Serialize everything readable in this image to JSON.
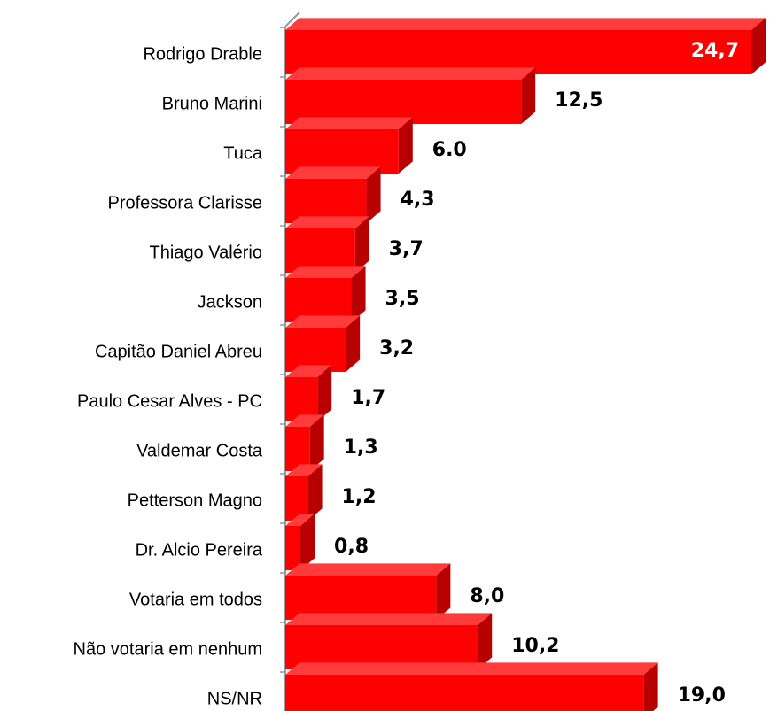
{
  "chart_data": {
    "type": "bar",
    "orientation": "horizontal",
    "color": "#ff0000",
    "categories": [
      "Rodrigo Drable",
      "Bruno Marini",
      "Tuca",
      "Professora Clarisse",
      "Thiago Valério",
      "Jackson",
      "Capitão Daniel Abreu",
      "Paulo Cesar Alves - PC",
      "Valdemar Costa",
      "Petterson Magno",
      "Dr. Alcio Pereira",
      "Votaria em todos",
      "Não votaria em nenhum",
      "NS/NR"
    ],
    "values": [
      24.7,
      12.5,
      6.0,
      4.3,
      3.7,
      3.5,
      3.2,
      1.7,
      1.3,
      1.2,
      0.8,
      8.0,
      10.2,
      19.0
    ],
    "value_labels": [
      "24,7",
      "12,5",
      "6.0",
      "4,3",
      "3,7",
      "3,5",
      "3,2",
      "1,7",
      "1,3",
      "1,2",
      "0,8",
      "8,0",
      "10,2",
      "19,0"
    ]
  }
}
